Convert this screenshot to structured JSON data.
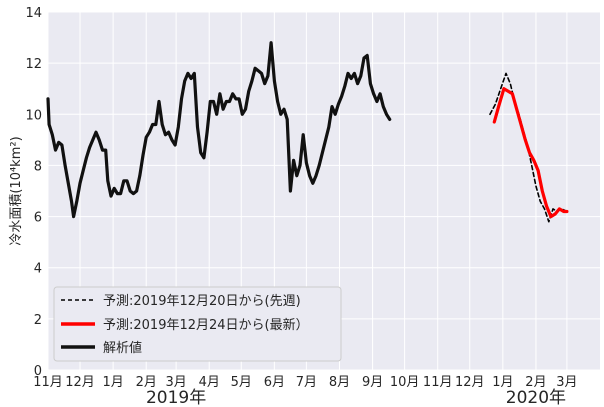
{
  "chart_data": {
    "type": "line",
    "ylabel": "冷水面積",
    "ylabel_unit": "(10⁴km²)",
    "ylim": [
      0,
      14
    ],
    "yticks": [
      "0",
      "2",
      "4",
      "6",
      "8",
      "10",
      "12",
      "14"
    ],
    "x_start": "2018-11-01",
    "xlim": [
      "2018-11-01",
      "2020-04-01"
    ],
    "xticks": [
      {
        "date": "2018-11-01",
        "label": "11月"
      },
      {
        "date": "2018-12-01",
        "label": "12月"
      },
      {
        "date": "2019-01-01",
        "label": "1月"
      },
      {
        "date": "2019-02-01",
        "label": "2月"
      },
      {
        "date": "2019-03-01",
        "label": "3月"
      },
      {
        "date": "2019-04-01",
        "label": "4月"
      },
      {
        "date": "2019-05-01",
        "label": "5月"
      },
      {
        "date": "2019-06-01",
        "label": "6月"
      },
      {
        "date": "2019-07-01",
        "label": "7月"
      },
      {
        "date": "2019-08-01",
        "label": "8月"
      },
      {
        "date": "2019-09-01",
        "label": "9月"
      },
      {
        "date": "2019-10-01",
        "label": "10月"
      },
      {
        "date": "2019-11-01",
        "label": "11月"
      },
      {
        "date": "2019-12-01",
        "label": "12月"
      },
      {
        "date": "2020-01-01",
        "label": "1月"
      },
      {
        "date": "2020-02-01",
        "label": "2月"
      },
      {
        "date": "2020-03-01",
        "label": "3月"
      }
    ],
    "year_labels": [
      {
        "date": "2019-03-01",
        "label": "2019年"
      },
      {
        "date": "2020-02-01",
        "label": "2020年"
      }
    ],
    "grid": true,
    "legend_position": "lower-left",
    "series": [
      {
        "name": "予測:2019年12月20日から(先週)",
        "color": "#000000",
        "style": "dashed",
        "points": [
          [
            "2019-12-20",
            10.0
          ],
          [
            "2019-12-25",
            10.4
          ],
          [
            "2019-12-30",
            11.0
          ],
          [
            "2020-01-04",
            11.6
          ],
          [
            "2020-01-08",
            11.2
          ],
          [
            "2020-01-12",
            10.5
          ],
          [
            "2020-01-16",
            10.0
          ],
          [
            "2020-01-20",
            9.4
          ],
          [
            "2020-01-24",
            8.8
          ],
          [
            "2020-01-28",
            8.0
          ],
          [
            "2020-02-01",
            7.2
          ],
          [
            "2020-02-05",
            6.6
          ],
          [
            "2020-02-09",
            6.3
          ],
          [
            "2020-02-13",
            5.8
          ],
          [
            "2020-02-17",
            6.3
          ],
          [
            "2020-02-21",
            6.2
          ],
          [
            "2020-02-25",
            6.3
          ],
          [
            "2020-03-01",
            6.2
          ]
        ]
      },
      {
        "name": "予測:2019年12月24日から(最新）",
        "color": "#ff0000",
        "style": "solid",
        "points": [
          [
            "2019-12-24",
            9.7
          ],
          [
            "2019-12-28",
            10.3
          ],
          [
            "2020-01-02",
            11.0
          ],
          [
            "2020-01-06",
            10.9
          ],
          [
            "2020-01-10",
            10.8
          ],
          [
            "2020-01-14",
            10.2
          ],
          [
            "2020-01-18",
            9.6
          ],
          [
            "2020-01-22",
            9.0
          ],
          [
            "2020-01-26",
            8.5
          ],
          [
            "2020-01-30",
            8.2
          ],
          [
            "2020-02-03",
            7.8
          ],
          [
            "2020-02-07",
            7.0
          ],
          [
            "2020-02-11",
            6.4
          ],
          [
            "2020-02-15",
            6.0
          ],
          [
            "2020-02-19",
            6.1
          ],
          [
            "2020-02-23",
            6.3
          ],
          [
            "2020-02-27",
            6.2
          ],
          [
            "2020-03-01",
            6.2
          ]
        ]
      },
      {
        "name": "解析値",
        "color": "#111111",
        "style": "solid",
        "points": [
          [
            "2018-11-01",
            10.6
          ],
          [
            "2018-11-02",
            9.6
          ],
          [
            "2018-11-05",
            9.2
          ],
          [
            "2018-11-08",
            8.6
          ],
          [
            "2018-11-11",
            8.9
          ],
          [
            "2018-11-14",
            8.8
          ],
          [
            "2018-11-17",
            8.0
          ],
          [
            "2018-11-20",
            7.3
          ],
          [
            "2018-11-23",
            6.6
          ],
          [
            "2018-11-25",
            6.0
          ],
          [
            "2018-11-28",
            6.6
          ],
          [
            "2018-12-01",
            7.3
          ],
          [
            "2018-12-04",
            7.8
          ],
          [
            "2018-12-07",
            8.3
          ],
          [
            "2018-12-10",
            8.7
          ],
          [
            "2018-12-13",
            9.0
          ],
          [
            "2018-12-16",
            9.3
          ],
          [
            "2018-12-19",
            9.0
          ],
          [
            "2018-12-22",
            8.6
          ],
          [
            "2018-12-25",
            8.6
          ],
          [
            "2018-12-27",
            7.4
          ],
          [
            "2018-12-30",
            6.8
          ],
          [
            "2019-01-02",
            7.1
          ],
          [
            "2019-01-05",
            6.9
          ],
          [
            "2019-01-08",
            6.9
          ],
          [
            "2019-01-11",
            7.4
          ],
          [
            "2019-01-14",
            7.4
          ],
          [
            "2019-01-17",
            7.0
          ],
          [
            "2019-01-20",
            6.9
          ],
          [
            "2019-01-23",
            7.0
          ],
          [
            "2019-01-26",
            7.6
          ],
          [
            "2019-01-29",
            8.4
          ],
          [
            "2019-02-01",
            9.1
          ],
          [
            "2019-02-04",
            9.3
          ],
          [
            "2019-02-07",
            9.6
          ],
          [
            "2019-02-10",
            9.6
          ],
          [
            "2019-02-13",
            10.5
          ],
          [
            "2019-02-16",
            9.6
          ],
          [
            "2019-02-19",
            9.2
          ],
          [
            "2019-02-22",
            9.3
          ],
          [
            "2019-02-25",
            9.0
          ],
          [
            "2019-02-28",
            8.8
          ],
          [
            "2019-03-03",
            9.5
          ],
          [
            "2019-03-06",
            10.6
          ],
          [
            "2019-03-09",
            11.3
          ],
          [
            "2019-03-12",
            11.6
          ],
          [
            "2019-03-15",
            11.4
          ],
          [
            "2019-03-18",
            11.6
          ],
          [
            "2019-03-21",
            9.5
          ],
          [
            "2019-03-24",
            8.5
          ],
          [
            "2019-03-27",
            8.3
          ],
          [
            "2019-03-30",
            9.3
          ],
          [
            "2019-04-02",
            10.5
          ],
          [
            "2019-04-05",
            10.5
          ],
          [
            "2019-04-08",
            10.0
          ],
          [
            "2019-04-11",
            10.8
          ],
          [
            "2019-04-14",
            10.2
          ],
          [
            "2019-04-17",
            10.5
          ],
          [
            "2019-04-20",
            10.5
          ],
          [
            "2019-04-23",
            10.8
          ],
          [
            "2019-04-26",
            10.6
          ],
          [
            "2019-04-29",
            10.6
          ],
          [
            "2019-05-02",
            10.0
          ],
          [
            "2019-05-05",
            10.2
          ],
          [
            "2019-05-08",
            10.9
          ],
          [
            "2019-05-11",
            11.3
          ],
          [
            "2019-05-14",
            11.8
          ],
          [
            "2019-05-17",
            11.7
          ],
          [
            "2019-05-20",
            11.6
          ],
          [
            "2019-05-23",
            11.2
          ],
          [
            "2019-05-26",
            11.5
          ],
          [
            "2019-05-29",
            12.8
          ],
          [
            "2019-06-01",
            11.3
          ],
          [
            "2019-06-04",
            10.5
          ],
          [
            "2019-06-07",
            10.0
          ],
          [
            "2019-06-10",
            10.2
          ],
          [
            "2019-06-13",
            9.8
          ],
          [
            "2019-06-16",
            7.0
          ],
          [
            "2019-06-19",
            8.2
          ],
          [
            "2019-06-22",
            7.6
          ],
          [
            "2019-06-25",
            8.0
          ],
          [
            "2019-06-28",
            9.2
          ],
          [
            "2019-07-01",
            8.1
          ],
          [
            "2019-07-04",
            7.6
          ],
          [
            "2019-07-07",
            7.3
          ],
          [
            "2019-07-10",
            7.6
          ],
          [
            "2019-07-13",
            8.0
          ],
          [
            "2019-07-16",
            8.5
          ],
          [
            "2019-07-19",
            9.0
          ],
          [
            "2019-07-22",
            9.5
          ],
          [
            "2019-07-25",
            10.3
          ],
          [
            "2019-07-28",
            10.0
          ],
          [
            "2019-07-31",
            10.4
          ],
          [
            "2019-08-03",
            10.7
          ],
          [
            "2019-08-06",
            11.1
          ],
          [
            "2019-08-09",
            11.6
          ],
          [
            "2019-08-12",
            11.4
          ],
          [
            "2019-08-15",
            11.6
          ],
          [
            "2019-08-18",
            11.2
          ],
          [
            "2019-08-21",
            11.5
          ],
          [
            "2019-08-24",
            12.2
          ],
          [
            "2019-08-27",
            12.3
          ],
          [
            "2019-08-30",
            11.2
          ],
          [
            "2019-09-02",
            10.8
          ],
          [
            "2019-09-05",
            10.5
          ],
          [
            "2019-09-08",
            10.8
          ],
          [
            "2019-09-11",
            10.3
          ],
          [
            "2019-09-14",
            10.0
          ],
          [
            "2019-09-17",
            9.8
          ]
        ]
      }
    ]
  }
}
